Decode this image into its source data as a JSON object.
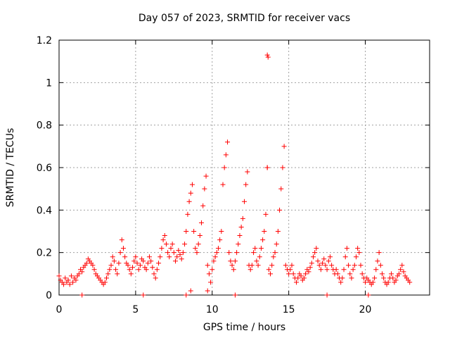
{
  "chart_data": {
    "type": "scatter",
    "title": "Day 057 of 2023, SRMTID for receiver vacs",
    "xlabel": "GPS time / hours",
    "ylabel": "SRMTID / TECUs",
    "xlim": [
      0,
      24.2
    ],
    "ylim": [
      0,
      1.2
    ],
    "xticks": [
      0,
      5,
      10,
      15,
      20
    ],
    "xtick_labels": [
      "0",
      "5",
      "10",
      "15",
      "20"
    ],
    "yticks": [
      0,
      0.2,
      0.4,
      0.6,
      0.8,
      1.0,
      1.2
    ],
    "ytick_labels": [
      "0",
      "0.2",
      "0.4",
      "0.6",
      "0.8",
      "1",
      "1.2"
    ],
    "grid": true,
    "marker": "+",
    "color": "#ff0000",
    "series": [
      {
        "name": "SRMTID",
        "points": [
          [
            0.0,
            0.09
          ],
          [
            0.1,
            0.07
          ],
          [
            0.2,
            0.06
          ],
          [
            0.3,
            0.05
          ],
          [
            0.4,
            0.08
          ],
          [
            0.5,
            0.06
          ],
          [
            0.6,
            0.07
          ],
          [
            0.7,
            0.05
          ],
          [
            0.8,
            0.09
          ],
          [
            0.9,
            0.06
          ],
          [
            1.0,
            0.08
          ],
          [
            1.1,
            0.07
          ],
          [
            1.2,
            0.09
          ],
          [
            1.3,
            0.1
          ],
          [
            1.4,
            0.12
          ],
          [
            1.5,
            0.11
          ],
          [
            1.6,
            0.13
          ],
          [
            1.7,
            0.14
          ],
          [
            1.8,
            0.15
          ],
          [
            1.9,
            0.17
          ],
          [
            2.0,
            0.16
          ],
          [
            2.1,
            0.15
          ],
          [
            2.2,
            0.14
          ],
          [
            2.3,
            0.12
          ],
          [
            2.4,
            0.1
          ],
          [
            2.5,
            0.09
          ],
          [
            2.6,
            0.08
          ],
          [
            2.7,
            0.07
          ],
          [
            2.8,
            0.06
          ],
          [
            2.9,
            0.05
          ],
          [
            3.0,
            0.06
          ],
          [
            3.1,
            0.08
          ],
          [
            3.2,
            0.1
          ],
          [
            3.3,
            0.12
          ],
          [
            3.4,
            0.14
          ],
          [
            3.5,
            0.18
          ],
          [
            3.6,
            0.16
          ],
          [
            3.7,
            0.12
          ],
          [
            3.8,
            0.1
          ],
          [
            3.9,
            0.15
          ],
          [
            4.0,
            0.2
          ],
          [
            4.1,
            0.26
          ],
          [
            4.2,
            0.22
          ],
          [
            4.3,
            0.18
          ],
          [
            4.4,
            0.15
          ],
          [
            4.5,
            0.14
          ],
          [
            4.6,
            0.12
          ],
          [
            4.7,
            0.1
          ],
          [
            4.8,
            0.13
          ],
          [
            4.9,
            0.16
          ],
          [
            5.0,
            0.18
          ],
          [
            5.1,
            0.15
          ],
          [
            5.2,
            0.12
          ],
          [
            5.3,
            0.14
          ],
          [
            5.4,
            0.17
          ],
          [
            5.5,
            0.16
          ],
          [
            5.6,
            0.13
          ],
          [
            5.7,
            0.12
          ],
          [
            5.8,
            0.15
          ],
          [
            5.9,
            0.18
          ],
          [
            6.0,
            0.16
          ],
          [
            6.1,
            0.13
          ],
          [
            6.2,
            0.1
          ],
          [
            6.3,
            0.08
          ],
          [
            6.4,
            0.12
          ],
          [
            6.5,
            0.15
          ],
          [
            6.6,
            0.18
          ],
          [
            6.7,
            0.22
          ],
          [
            6.8,
            0.26
          ],
          [
            6.9,
            0.28
          ],
          [
            7.0,
            0.24
          ],
          [
            7.1,
            0.2
          ],
          [
            7.2,
            0.18
          ],
          [
            7.3,
            0.22
          ],
          [
            7.4,
            0.24
          ],
          [
            7.5,
            0.2
          ],
          [
            7.6,
            0.16
          ],
          [
            7.7,
            0.18
          ],
          [
            7.8,
            0.21
          ],
          [
            7.9,
            0.19
          ],
          [
            8.0,
            0.17
          ],
          [
            8.1,
            0.2
          ],
          [
            8.2,
            0.24
          ],
          [
            8.3,
            0.3
          ],
          [
            8.4,
            0.38
          ],
          [
            8.5,
            0.44
          ],
          [
            8.6,
            0.48
          ],
          [
            8.7,
            0.52
          ],
          [
            8.8,
            0.3
          ],
          [
            8.9,
            0.22
          ],
          [
            9.0,
            0.2
          ],
          [
            9.1,
            0.24
          ],
          [
            9.2,
            0.28
          ],
          [
            9.3,
            0.34
          ],
          [
            9.4,
            0.42
          ],
          [
            9.5,
            0.5
          ],
          [
            9.6,
            0.56
          ],
          [
            9.7,
            0.14
          ],
          [
            9.8,
            0.1
          ],
          [
            9.9,
            0.06
          ],
          [
            10.0,
            0.12
          ],
          [
            10.1,
            0.16
          ],
          [
            10.2,
            0.18
          ],
          [
            10.3,
            0.2
          ],
          [
            10.4,
            0.22
          ],
          [
            10.5,
            0.26
          ],
          [
            10.6,
            0.3
          ],
          [
            10.7,
            0.52
          ],
          [
            10.8,
            0.6
          ],
          [
            10.9,
            0.66
          ],
          [
            11.0,
            0.72
          ],
          [
            11.1,
            0.2
          ],
          [
            11.2,
            0.16
          ],
          [
            11.3,
            0.14
          ],
          [
            11.4,
            0.12
          ],
          [
            11.5,
            0.16
          ],
          [
            11.6,
            0.2
          ],
          [
            11.7,
            0.24
          ],
          [
            11.8,
            0.28
          ],
          [
            11.9,
            0.32
          ],
          [
            12.0,
            0.36
          ],
          [
            12.1,
            0.44
          ],
          [
            12.2,
            0.52
          ],
          [
            12.3,
            0.58
          ],
          [
            12.4,
            0.14
          ],
          [
            12.5,
            0.12
          ],
          [
            12.6,
            0.14
          ],
          [
            12.7,
            0.2
          ],
          [
            12.8,
            0.22
          ],
          [
            12.9,
            0.16
          ],
          [
            13.0,
            0.14
          ],
          [
            13.1,
            0.18
          ],
          [
            13.2,
            0.22
          ],
          [
            13.3,
            0.26
          ],
          [
            13.4,
            0.3
          ],
          [
            13.5,
            0.38
          ],
          [
            13.6,
            0.6
          ],
          [
            13.7,
            0.12
          ],
          [
            13.8,
            0.1
          ],
          [
            13.9,
            0.14
          ],
          [
            14.0,
            0.18
          ],
          [
            14.1,
            0.2
          ],
          [
            14.2,
            0.24
          ],
          [
            14.3,
            0.3
          ],
          [
            14.4,
            0.4
          ],
          [
            14.5,
            0.5
          ],
          [
            14.6,
            0.6
          ],
          [
            14.7,
            0.7
          ],
          [
            14.8,
            0.14
          ],
          [
            14.9,
            0.12
          ],
          [
            15.0,
            0.1
          ],
          [
            15.1,
            0.12
          ],
          [
            15.2,
            0.14
          ],
          [
            15.3,
            0.1
          ],
          [
            15.4,
            0.08
          ],
          [
            15.5,
            0.06
          ],
          [
            15.6,
            0.08
          ],
          [
            15.7,
            0.1
          ],
          [
            15.8,
            0.09
          ],
          [
            15.9,
            0.07
          ],
          [
            16.0,
            0.08
          ],
          [
            16.1,
            0.1
          ],
          [
            16.2,
            0.12
          ],
          [
            16.3,
            0.11
          ],
          [
            16.4,
            0.13
          ],
          [
            16.5,
            0.15
          ],
          [
            16.6,
            0.18
          ],
          [
            16.7,
            0.2
          ],
          [
            16.8,
            0.22
          ],
          [
            16.9,
            0.16
          ],
          [
            17.0,
            0.14
          ],
          [
            17.1,
            0.12
          ],
          [
            17.2,
            0.15
          ],
          [
            17.3,
            0.17
          ],
          [
            17.4,
            0.14
          ],
          [
            17.5,
            0.12
          ],
          [
            17.6,
            0.16
          ],
          [
            17.7,
            0.18
          ],
          [
            17.8,
            0.14
          ],
          [
            17.9,
            0.12
          ],
          [
            18.0,
            0.1
          ],
          [
            18.1,
            0.12
          ],
          [
            18.2,
            0.1
          ],
          [
            18.3,
            0.08
          ],
          [
            18.4,
            0.06
          ],
          [
            18.5,
            0.08
          ],
          [
            18.6,
            0.12
          ],
          [
            18.7,
            0.18
          ],
          [
            18.8,
            0.22
          ],
          [
            18.9,
            0.14
          ],
          [
            19.0,
            0.1
          ],
          [
            19.1,
            0.08
          ],
          [
            19.2,
            0.12
          ],
          [
            19.3,
            0.14
          ],
          [
            19.4,
            0.18
          ],
          [
            19.5,
            0.22
          ],
          [
            19.6,
            0.2
          ],
          [
            19.7,
            0.14
          ],
          [
            19.8,
            0.1
          ],
          [
            19.9,
            0.08
          ],
          [
            20.0,
            0.06
          ],
          [
            20.1,
            0.08
          ],
          [
            20.2,
            0.07
          ],
          [
            20.3,
            0.06
          ],
          [
            20.4,
            0.05
          ],
          [
            20.5,
            0.06
          ],
          [
            20.6,
            0.08
          ],
          [
            20.7,
            0.12
          ],
          [
            20.8,
            0.16
          ],
          [
            20.9,
            0.2
          ],
          [
            21.0,
            0.14
          ],
          [
            21.1,
            0.1
          ],
          [
            21.2,
            0.08
          ],
          [
            21.3,
            0.06
          ],
          [
            21.4,
            0.05
          ],
          [
            21.5,
            0.06
          ],
          [
            21.6,
            0.08
          ],
          [
            21.7,
            0.1
          ],
          [
            21.8,
            0.08
          ],
          [
            21.9,
            0.06
          ],
          [
            22.0,
            0.07
          ],
          [
            22.1,
            0.09
          ],
          [
            22.2,
            0.1
          ],
          [
            22.3,
            0.12
          ],
          [
            22.4,
            0.14
          ],
          [
            22.5,
            0.11
          ],
          [
            22.6,
            0.09
          ],
          [
            22.7,
            0.08
          ],
          [
            22.8,
            0.07
          ],
          [
            22.9,
            0.06
          ],
          [
            8.3,
            0.0
          ],
          [
            8.6,
            0.02
          ],
          [
            9.7,
            0.02
          ],
          [
            13.6,
            1.13
          ],
          [
            13.65,
            1.12
          ],
          [
            13.6,
            0.6
          ],
          [
            1.5,
            0.0
          ],
          [
            5.5,
            0.0
          ],
          [
            11.5,
            0.0
          ],
          [
            17.5,
            0.0
          ],
          [
            20.2,
            0.0
          ]
        ]
      }
    ]
  }
}
